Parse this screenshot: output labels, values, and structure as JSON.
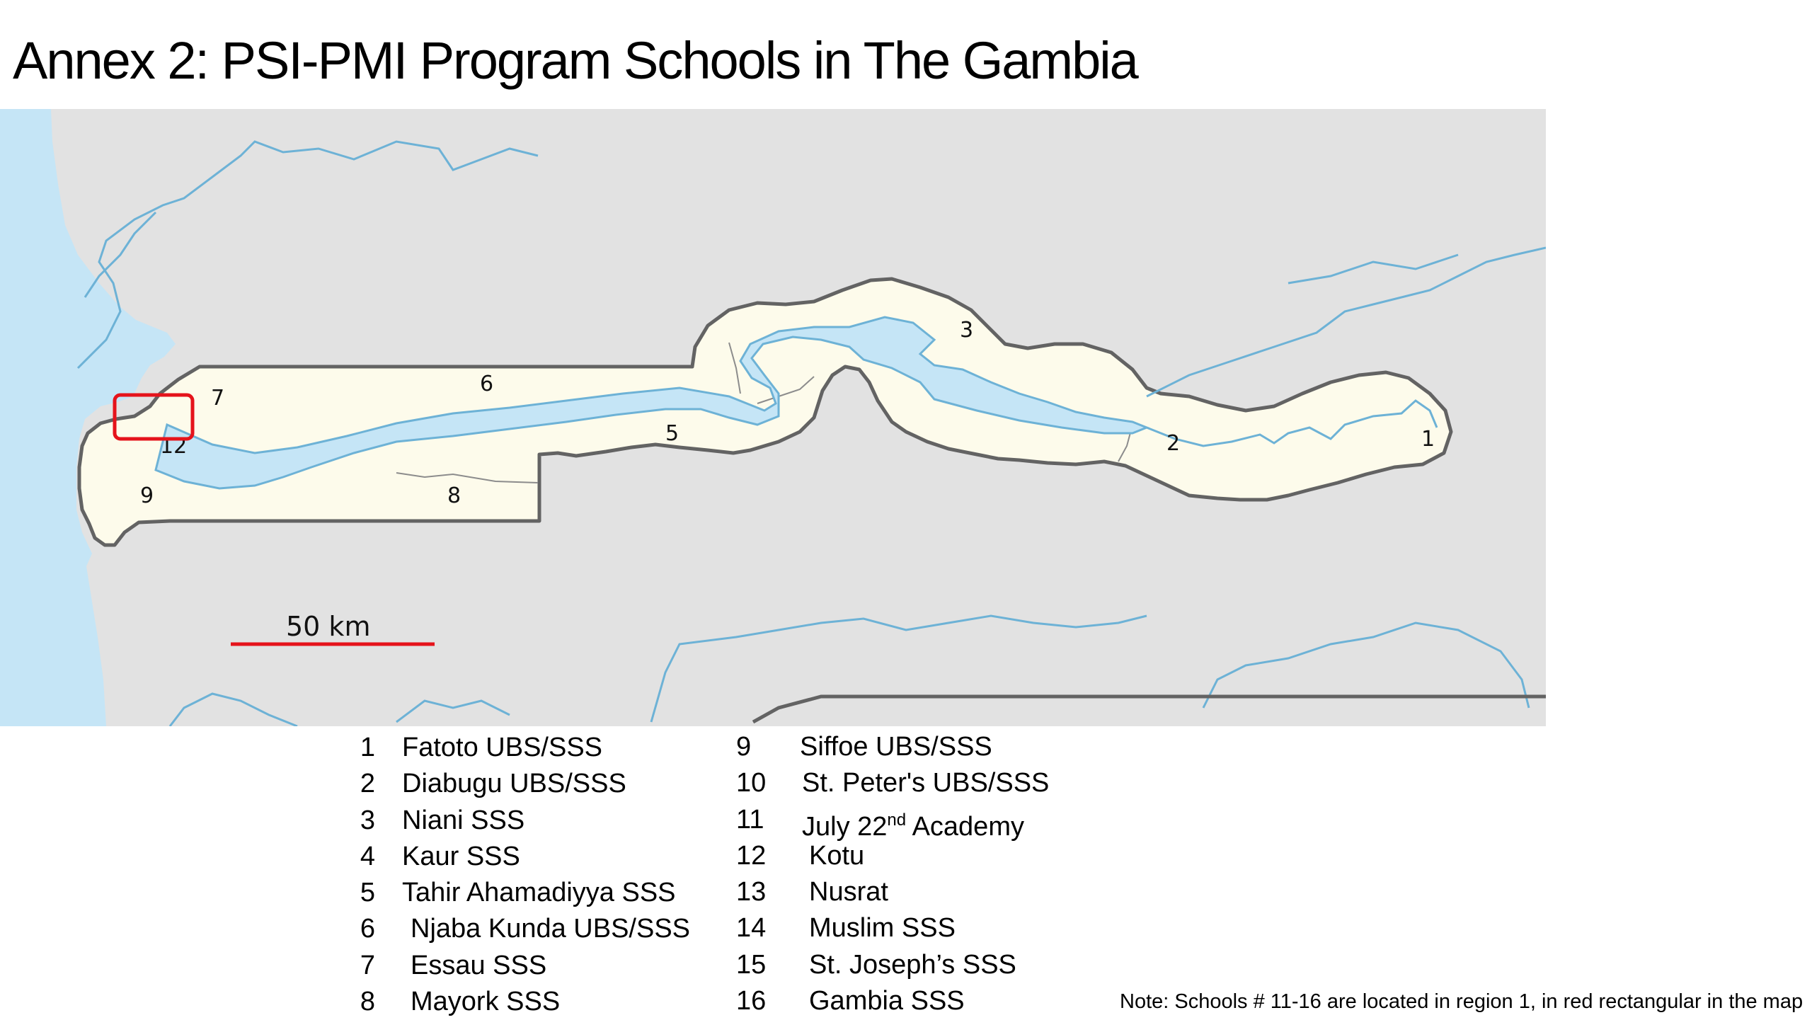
{
  "title": "Annex 2: PSI-PMI Program Schools in The Gambia",
  "colors": {
    "land": "#e2e2e2",
    "ocean": "#c5e5f6",
    "gambia": "#fdfbeb",
    "river": "#6db2d6",
    "border": "#636363",
    "highlight": "#e5131b",
    "scale_bar": "#e5131b"
  },
  "map": {
    "region_labels": [
      "1",
      "2",
      "3",
      "5",
      "6",
      "7",
      "8",
      "9",
      "12"
    ],
    "scale_label": "50 km",
    "scale_length_km": 50
  },
  "legend": {
    "left": [
      {
        "num": "1",
        "name": "Fatoto UBS/SSS"
      },
      {
        "num": "2",
        "name": "Diabugu UBS/SSS"
      },
      {
        "num": "3",
        "name": "Niani SSS"
      },
      {
        "num": "4",
        "name": "Kaur SSS"
      },
      {
        "num": "5",
        "name": "Tahir Ahamadiyya SSS"
      },
      {
        "num": "6",
        "name": "Njaba Kunda UBS/SSS"
      },
      {
        "num": "7",
        "name": "Essau SSS"
      },
      {
        "num": "8",
        "name": "Mayork SSS"
      }
    ],
    "right": [
      {
        "num": "9",
        "name": "Siffoe UBS/SSS"
      },
      {
        "num": "10",
        "name": "St. Peter's UBS/SSS"
      },
      {
        "num": "11",
        "name": "July 22",
        "sup": "nd",
        "name_after": " Academy"
      },
      {
        "num": "12",
        "name": "Kotu"
      },
      {
        "num": "13",
        "name": "Nusrat"
      },
      {
        "num": "14",
        "name": "Muslim SSS"
      },
      {
        "num": "15",
        "name": "St. Joseph’s SSS"
      },
      {
        "num": "16",
        "name": "Gambia SSS"
      }
    ]
  },
  "note": "Note: Schools # 11-16 are located in region 1, in red rectangular in the map"
}
